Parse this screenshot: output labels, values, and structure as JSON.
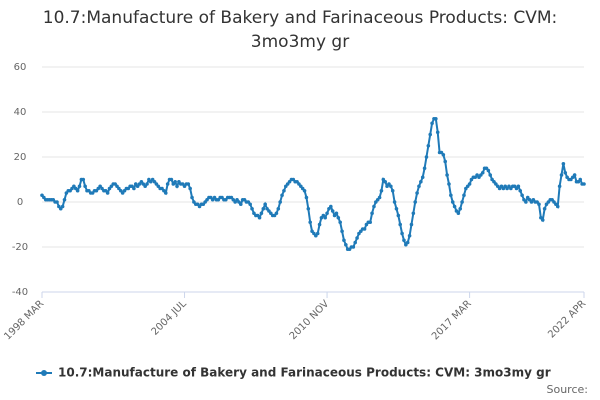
{
  "chart_data": {
    "type": "line",
    "title": "10.7:Manufacture of Bakery and Farinaceous Products: CVM: 3mo3my gr",
    "source": "Source:",
    "ylim": [
      -40,
      60
    ],
    "yticks": [
      -40,
      -20,
      0,
      20,
      40,
      60
    ],
    "grid": true,
    "legend": "bottom",
    "categories": [
      "1998 MAR",
      null,
      null,
      null,
      null,
      null,
      null,
      null,
      null,
      null,
      null,
      null,
      null,
      null,
      null,
      null,
      null,
      null,
      null,
      null,
      null,
      null,
      null,
      null,
      null,
      null,
      null,
      null,
      null,
      null,
      null,
      null,
      null,
      null,
      null,
      null,
      null,
      null,
      null,
      null,
      null,
      null,
      null,
      null,
      null,
      null,
      null,
      null,
      null,
      null,
      null,
      null,
      null,
      null,
      null,
      null,
      null,
      null,
      null,
      null,
      null,
      null,
      null,
      null,
      null,
      null,
      null,
      null,
      null,
      null,
      null,
      null,
      null,
      null,
      null,
      null,
      "2004 JUL",
      null,
      null,
      null,
      null,
      null,
      null,
      null,
      null,
      null,
      null,
      null,
      null,
      null,
      null,
      null,
      null,
      null,
      null,
      null,
      null,
      null,
      null,
      null,
      null,
      null,
      null,
      null,
      null,
      null,
      null,
      null,
      null,
      null,
      null,
      null,
      null,
      null,
      null,
      null,
      null,
      null,
      null,
      null,
      null,
      null,
      null,
      null,
      null,
      null,
      null,
      null,
      null,
      null,
      null,
      null,
      null,
      null,
      null,
      null,
      null,
      null,
      null,
      null,
      null,
      null,
      null,
      null,
      null,
      null,
      null,
      null,
      null,
      null,
      null,
      null,
      "2010 NOV",
      null,
      null,
      null,
      null,
      null,
      null,
      null,
      null,
      null,
      null,
      null,
      null,
      null,
      null,
      null,
      null,
      null,
      null,
      null,
      null,
      null,
      null,
      null,
      null,
      null,
      null,
      null,
      null,
      null,
      null,
      null,
      null,
      null,
      null,
      null,
      null,
      null,
      null,
      null,
      null,
      null,
      null,
      null,
      null,
      null,
      null,
      null,
      null,
      null,
      null,
      null,
      null,
      null,
      null,
      null,
      null,
      null,
      null,
      null,
      null,
      null,
      null,
      null,
      null,
      null,
      null,
      null,
      null,
      null,
      null,
      null,
      null,
      null,
      null,
      null,
      "2017 MAR",
      null,
      null,
      null,
      null,
      null,
      null,
      null,
      null,
      null,
      null,
      null,
      null,
      null,
      null,
      null,
      null,
      null,
      null,
      null,
      null,
      null,
      null,
      null,
      null,
      null,
      null,
      null,
      null,
      null,
      null,
      null,
      null,
      null,
      null,
      null,
      null,
      null,
      null,
      null,
      null,
      null,
      null,
      null,
      null,
      null,
      null,
      null,
      null,
      null,
      null,
      null,
      null,
      null,
      null,
      null,
      null,
      null,
      null,
      null,
      null,
      "2022 APR"
    ],
    "series": [
      {
        "name": "10.7:Manufacture of Bakery and Farinaceous Products: CVM: 3mo3my gr",
        "color": "#1f7ab8",
        "values": [
          3,
          2,
          1,
          1,
          1,
          1,
          1,
          0,
          0,
          -2,
          -3,
          -2,
          1,
          4,
          5,
          5,
          6,
          7,
          6,
          5,
          7,
          10,
          10,
          7,
          5,
          5,
          4,
          4,
          5,
          5,
          6,
          7,
          6,
          5,
          5,
          4,
          6,
          7,
          8,
          8,
          7,
          6,
          5,
          4,
          5,
          6,
          6,
          7,
          7,
          6,
          8,
          7,
          8,
          9,
          8,
          7,
          8,
          10,
          9,
          10,
          9,
          8,
          7,
          6,
          6,
          5,
          4,
          8,
          10,
          10,
          8,
          9,
          7,
          9,
          8,
          8,
          7,
          8,
          8,
          6,
          2,
          0,
          -1,
          -1,
          -2,
          -1,
          -1,
          0,
          1,
          2,
          2,
          1,
          2,
          1,
          1,
          2,
          2,
          1,
          1,
          2,
          2,
          2,
          1,
          0,
          1,
          0,
          -1,
          1,
          1,
          0,
          0,
          -1,
          -3,
          -5,
          -6,
          -6,
          -7,
          -5,
          -3,
          -1,
          -3,
          -4,
          -5,
          -6,
          -6,
          -5,
          -3,
          0,
          3,
          5,
          7,
          8,
          9,
          10,
          10,
          9,
          9,
          8,
          7,
          6,
          5,
          2,
          -3,
          -9,
          -13,
          -14,
          -15,
          -14,
          -10,
          -7,
          -6,
          -7,
          -5,
          -3,
          -2,
          -4,
          -6,
          -5,
          -7,
          -9,
          -13,
          -17,
          -19,
          -21,
          -21,
          -20,
          -20,
          -18,
          -16,
          -14,
          -13,
          -12,
          -12,
          -10,
          -9,
          -9,
          -5,
          -2,
          0,
          1,
          2,
          5,
          10,
          9,
          7,
          8,
          7,
          5,
          0,
          -3,
          -6,
          -10,
          -14,
          -17,
          -19,
          -18,
          -15,
          -10,
          -5,
          0,
          4,
          7,
          9,
          11,
          15,
          20,
          25,
          30,
          35,
          37,
          37,
          31,
          22,
          22,
          21,
          18,
          12,
          8,
          3,
          0,
          -2,
          -4,
          -5,
          -3,
          0,
          3,
          6,
          7,
          8,
          10,
          11,
          11,
          12,
          11,
          12,
          13,
          15,
          15,
          14,
          12,
          10,
          9,
          8,
          7,
          6,
          7,
          6,
          7,
          6,
          7,
          6,
          7,
          7,
          6,
          7,
          5,
          3,
          1,
          0,
          2,
          1,
          0,
          1,
          0,
          0,
          -1,
          -7,
          -8,
          -3,
          -1,
          0,
          1,
          1,
          0,
          -1,
          -2,
          7,
          12,
          17,
          13,
          11,
          10,
          10,
          11,
          12,
          9,
          9,
          10,
          8,
          8
        ]
      }
    ]
  }
}
